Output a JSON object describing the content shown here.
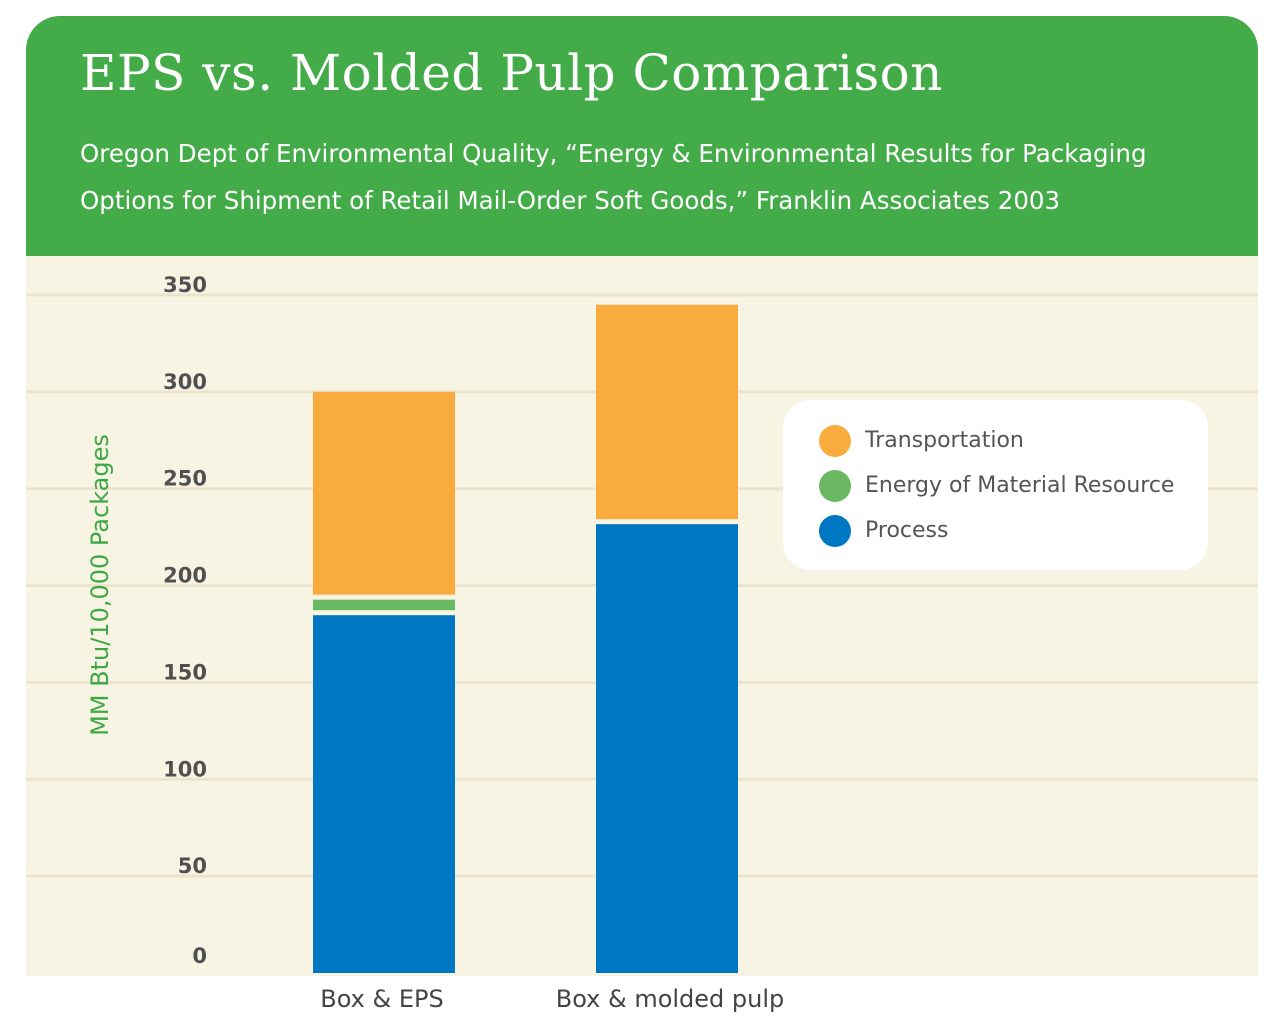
{
  "colors": {
    "header_bg": "#43ac49",
    "plot_bg": "#f8f4e4",
    "gridline": "#ede3cd",
    "ylabel": "#3ea845",
    "tick_text": "#505050"
  },
  "header": {
    "title": "EPS vs. Molded Pulp Comparison",
    "subtitle_line1": "Oregon Dept of Environmental Quality, “Energy & Environmental Results for Packaging",
    "subtitle_line2": "Options for Shipment of Retail Mail-Order Soft Goods,” Franklin Associates 2003"
  },
  "chart_data": {
    "type": "bar",
    "stacked": true,
    "title": "EPS vs. Molded Pulp Comparison",
    "subtitle": "Oregon Dept of Environmental Quality, “Energy & Environmental Results for Packaging Options for Shipment of Retail Mail-Order Soft Goods,” Franklin Associates 2003",
    "xlabel": "",
    "ylabel": "MM Btu/10,000 Packages",
    "ylim": [
      0,
      350
    ],
    "yticks": [
      "0",
      "50",
      "100",
      "150",
      "200",
      "250",
      "300",
      "350"
    ],
    "grid": true,
    "legend_position": "right",
    "categories": [
      "Box & EPS",
      "Box & molded pulp"
    ],
    "series": [
      {
        "name": "Process",
        "values": [
          186,
          233
        ],
        "color": "#0077c2"
      },
      {
        "name": "Energy of Material Resource",
        "values": [
          8,
          0
        ],
        "color": "#6ab861"
      },
      {
        "name": "Transportation",
        "values": [
          106,
          112
        ],
        "color": "#f9ab3d"
      }
    ],
    "legend": [
      "Transportation",
      "Energy of Material Resource",
      "Process"
    ]
  }
}
